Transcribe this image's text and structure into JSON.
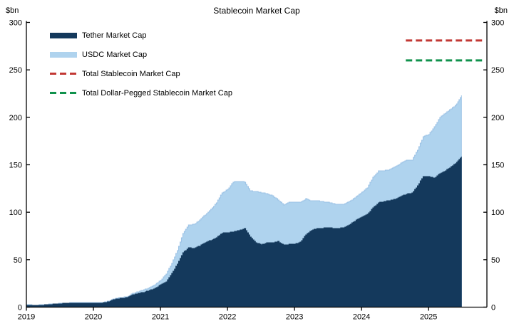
{
  "title": "Stablecoin Market Cap",
  "y_axis": {
    "unit_label": "$bn",
    "min": 0,
    "max": 300,
    "tick_step": 50,
    "ticks": [
      0,
      50,
      100,
      150,
      200,
      250,
      300
    ]
  },
  "x_axis": {
    "ticks": [
      2019,
      2020,
      2021,
      2022,
      2023,
      2024,
      2025
    ],
    "domain": [
      2019,
      2025.87
    ]
  },
  "legend": {
    "position": "top-left",
    "items": [
      {
        "label": "Tether Market Cap",
        "type": "area",
        "color": "#14395C"
      },
      {
        "label": "USDC Market Cap",
        "type": "area",
        "color": "#AFD3EE"
      },
      {
        "label": "Total Stablecoin Market Cap",
        "type": "dash",
        "color": "#C23834"
      },
      {
        "label": "Total Dollar-Pegged Stablecoin Market Cap",
        "type": "dash",
        "color": "#10924C"
      }
    ]
  },
  "chart_data": {
    "type": "area",
    "stacked": true,
    "title": "Stablecoin Market Cap",
    "xlabel": "",
    "ylabel": "$bn",
    "ylim": [
      0,
      300
    ],
    "grid": false,
    "x": [
      2019.0,
      2019.083,
      2019.167,
      2019.25,
      2019.333,
      2019.417,
      2019.5,
      2019.583,
      2019.667,
      2019.75,
      2019.833,
      2019.917,
      2020.0,
      2020.083,
      2020.167,
      2020.25,
      2020.333,
      2020.417,
      2020.5,
      2020.583,
      2020.667,
      2020.75,
      2020.833,
      2020.917,
      2021.0,
      2021.083,
      2021.167,
      2021.25,
      2021.333,
      2021.417,
      2021.5,
      2021.583,
      2021.667,
      2021.75,
      2021.833,
      2021.917,
      2022.0,
      2022.083,
      2022.167,
      2022.25,
      2022.333,
      2022.417,
      2022.5,
      2022.583,
      2022.667,
      2022.75,
      2022.833,
      2022.917,
      2023.0,
      2023.083,
      2023.167,
      2023.25,
      2023.333,
      2023.417,
      2023.5,
      2023.583,
      2023.667,
      2023.75,
      2023.833,
      2023.917,
      2024.0,
      2024.083,
      2024.167,
      2024.25,
      2024.333,
      2024.417,
      2024.5,
      2024.583,
      2024.667,
      2024.75,
      2024.833,
      2024.917,
      2025.0,
      2025.083,
      2025.167,
      2025.25,
      2025.333,
      2025.417,
      2025.49
    ],
    "series": [
      {
        "name": "Tether Market Cap",
        "color": "#14395C",
        "values": [
          2.0,
          2.0,
          2.0,
          2.2,
          2.8,
          3.1,
          3.6,
          4.0,
          4.1,
          4.1,
          4.1,
          4.1,
          4.1,
          4.4,
          4.6,
          6.4,
          8.8,
          9.2,
          10.0,
          13.0,
          14.5,
          15.7,
          17.5,
          20.0,
          23.5,
          26.8,
          35.6,
          45.3,
          57.4,
          62.6,
          61.8,
          64.5,
          68.0,
          70.5,
          73.2,
          78.0,
          78.4,
          79.5,
          80.8,
          82.7,
          74.0,
          67.9,
          65.9,
          67.6,
          67.9,
          69.1,
          65.3,
          66.2,
          66.3,
          68.5,
          76.5,
          81.0,
          82.8,
          83.2,
          83.8,
          82.9,
          83.0,
          84.2,
          87.5,
          91.7,
          94.7,
          97.7,
          104.5,
          110.0,
          111.3,
          112.5,
          114.0,
          117.0,
          119.0,
          120.2,
          127.9,
          137.8,
          137.4,
          136.0,
          141.0,
          144.0,
          148.0,
          152.5,
          158.5
        ]
      },
      {
        "name": "USDC Market Cap",
        "color": "#AFD3EE",
        "values": [
          0.3,
          0.25,
          0.25,
          0.3,
          0.3,
          0.35,
          0.4,
          0.4,
          0.45,
          0.45,
          0.5,
          0.5,
          0.5,
          0.5,
          0.7,
          0.7,
          0.7,
          1.1,
          1.1,
          1.4,
          1.9,
          2.8,
          2.9,
          3.9,
          4.9,
          8.0,
          10.8,
          14.5,
          20.0,
          24.1,
          25.5,
          27.4,
          29.5,
          32.3,
          37.0,
          42.4,
          45.6,
          52.5,
          51.9,
          49.3,
          48.5,
          54.0,
          54.8,
          52.1,
          49.3,
          43.9,
          42.7,
          44.3,
          44.0,
          42.2,
          37.6,
          30.9,
          29.2,
          27.9,
          26.5,
          25.9,
          25.2,
          24.7,
          24.4,
          24.6,
          26.4,
          28.0,
          32.4,
          33.3,
          32.5,
          32.4,
          33.9,
          34.6,
          35.9,
          34.7,
          37.7,
          42.0,
          44.4,
          54.0,
          59.0,
          60.5,
          61.0,
          61.5,
          65.0
        ]
      }
    ],
    "reference_lines": [
      {
        "name": "Total Stablecoin Market Cap",
        "value": 281,
        "color": "#C23834",
        "style": "dashed",
        "x_start": 2024.66,
        "x_end": 2025.81
      },
      {
        "name": "Total Dollar-Pegged Stablecoin Market Cap",
        "value": 260,
        "color": "#10924C",
        "style": "dashed",
        "x_start": 2024.66,
        "x_end": 2025.81
      }
    ]
  }
}
